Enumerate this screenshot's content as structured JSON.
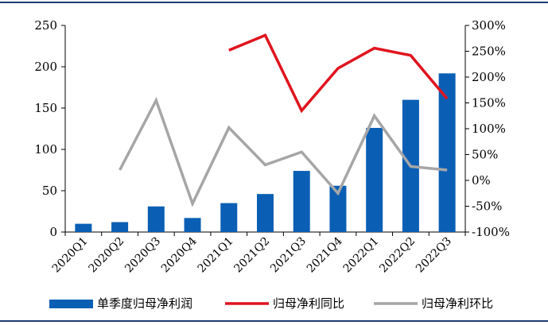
{
  "chart_data": {
    "type": "bar+line",
    "categories": [
      "2020Q1",
      "2020Q2",
      "2020Q3",
      "2020Q4",
      "2021Q1",
      "2021Q2",
      "2021Q3",
      "2021Q4",
      "2022Q1",
      "2022Q2",
      "2022Q3"
    ],
    "bar_series": {
      "name": "单季度归母净利润",
      "color": "#0a5fb4",
      "values": [
        10,
        12,
        31,
        17,
        35,
        46,
        74,
        56,
        126,
        160,
        192
      ]
    },
    "line_series": [
      {
        "name": "归母净利同比",
        "color": "#e0141e",
        "values": [
          null,
          null,
          null,
          null,
          252,
          281,
          135,
          217,
          256,
          242,
          158
        ]
      },
      {
        "name": "归母净利环比",
        "color": "#a6a6a6",
        "values": [
          null,
          20,
          155,
          -45,
          102,
          30,
          55,
          -25,
          125,
          27,
          20
        ]
      }
    ],
    "y_left": {
      "min": 0,
      "max": 250,
      "ticks": [
        0,
        50,
        100,
        150,
        200,
        250
      ]
    },
    "y_right": {
      "min": -100,
      "max": 300,
      "ticks": [
        -100,
        -50,
        0,
        50,
        100,
        150,
        200,
        250,
        300
      ],
      "tick_labels": [
        "-100%",
        "-50%",
        "0%",
        "50%",
        "100%",
        "150%",
        "200%",
        "250%",
        "300%"
      ]
    },
    "legend_position": "bottom",
    "frame_color": "#1f3a73",
    "grid": false
  }
}
